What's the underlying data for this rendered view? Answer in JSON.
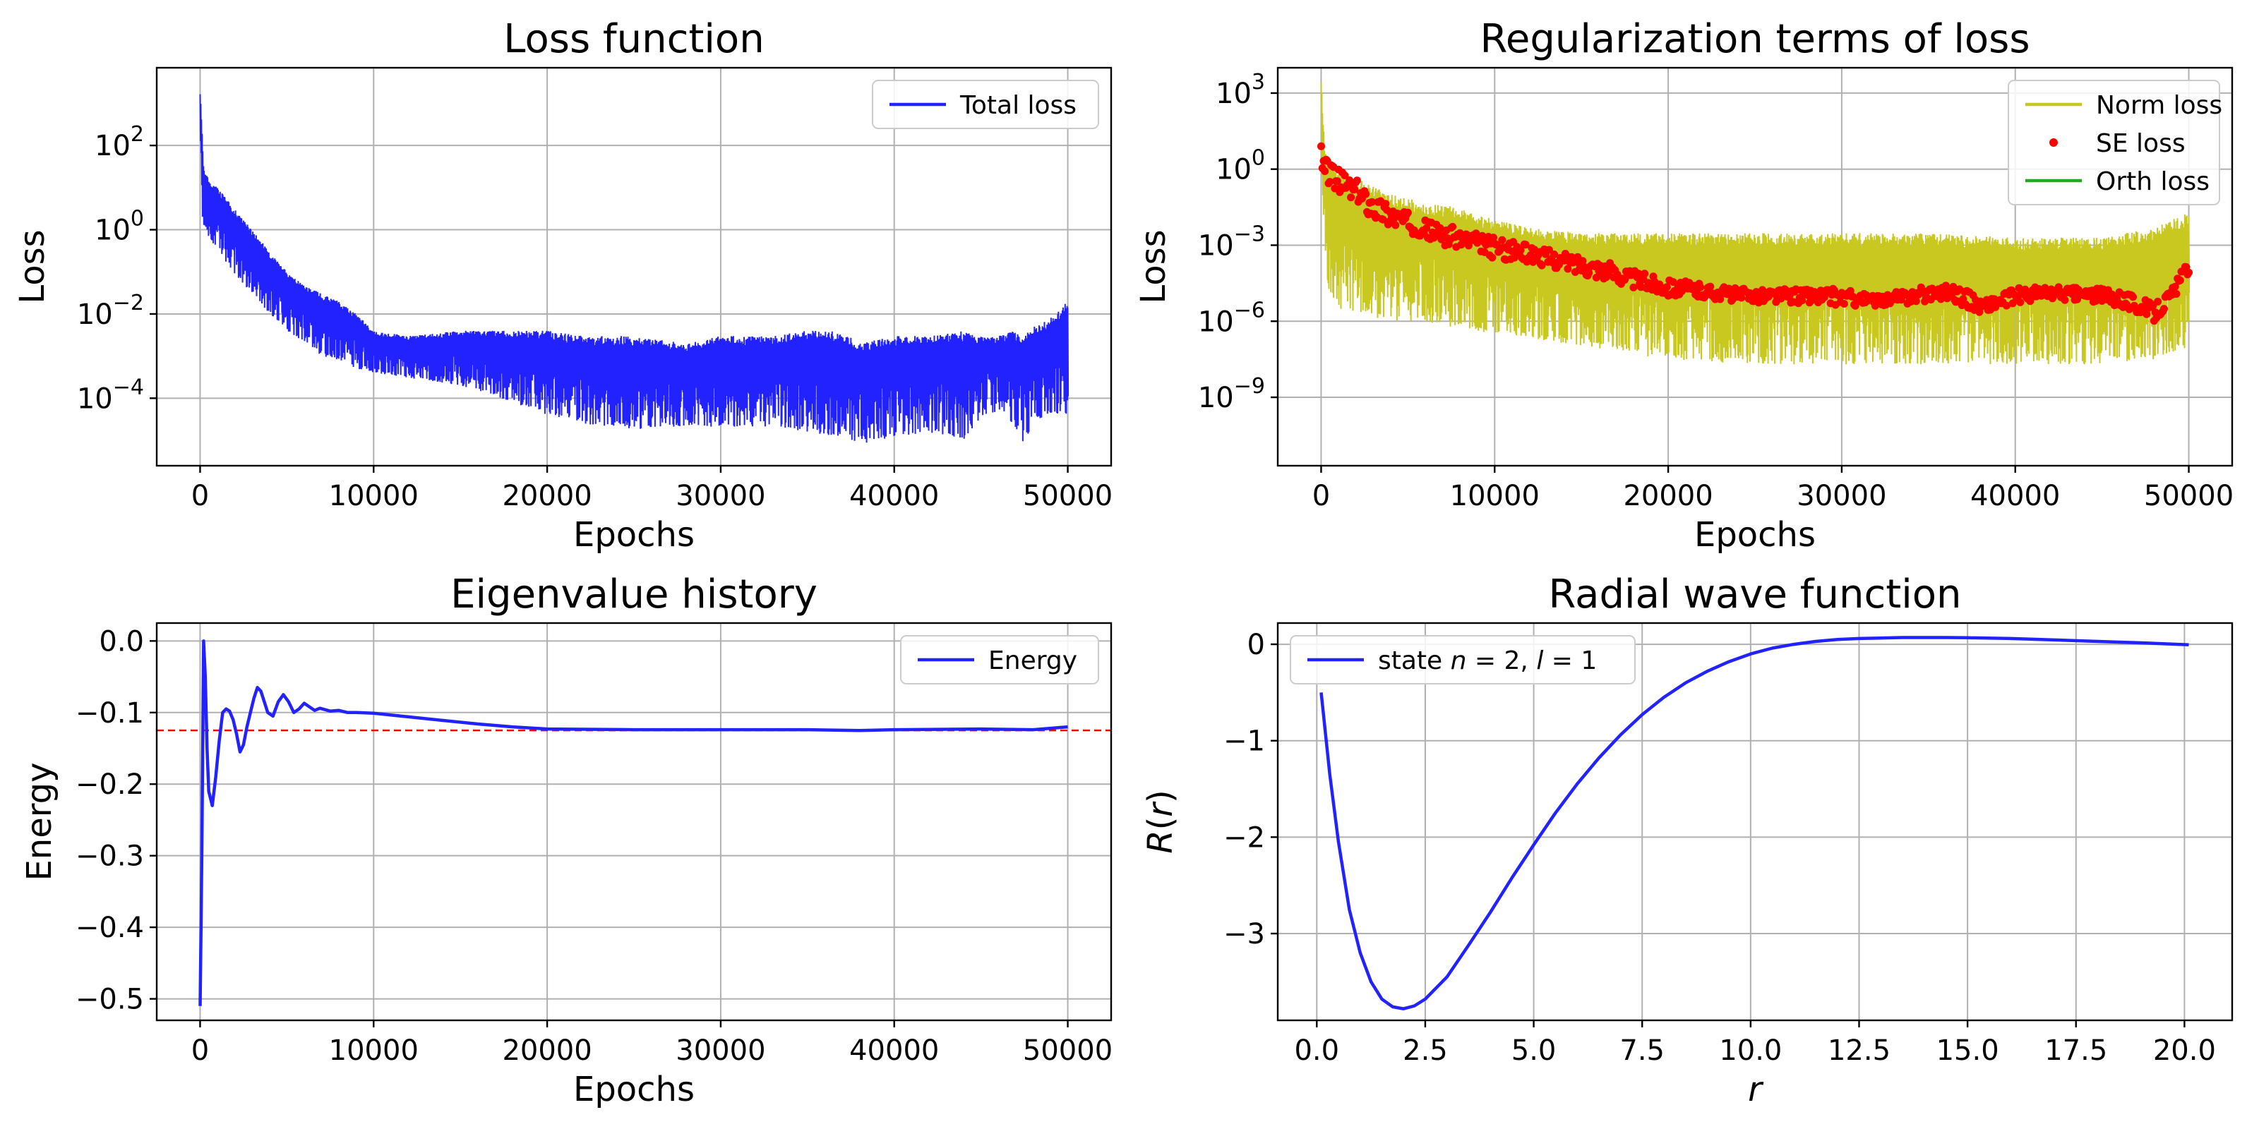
{
  "chart_data": [
    {
      "type": "line",
      "title": "Loss function",
      "xlabel": "Epochs",
      "ylabel": "Loss",
      "yscale": "log",
      "xlim": [
        -2500,
        52500
      ],
      "ylim": [
        2.5e-06,
        7000
      ],
      "xticks": [
        0,
        10000,
        20000,
        30000,
        40000,
        50000
      ],
      "yticks": [
        {
          "exp": "2",
          "v": 100
        },
        {
          "exp": "0",
          "v": 1
        },
        {
          "exp": "-2",
          "v": 0.01
        },
        {
          "exp": "-4",
          "v": 0.0001
        }
      ],
      "grid": true,
      "legend": "top-right",
      "series": [
        {
          "name": "Total loss",
          "color": "#2222ff",
          "style": "noisy-band",
          "x": [
            0,
            200,
            500,
            1000,
            2000,
            3000,
            4000,
            5000,
            6000,
            7000,
            8000,
            9000,
            10000,
            12000,
            15000,
            18000,
            20000,
            22000,
            25000,
            28000,
            30000,
            33000,
            35000,
            37000,
            38000,
            40000,
            42000,
            44000,
            45000,
            46000,
            47000,
            47500,
            48000,
            49000,
            50000
          ],
          "upper": [
            3000,
            30,
            15,
            10,
            3,
            1,
            0.3,
            0.1,
            0.05,
            0.03,
            0.02,
            0.01,
            0.004,
            0.003,
            0.004,
            0.004,
            0.004,
            0.003,
            0.003,
            0.002,
            0.003,
            0.003,
            0.004,
            0.004,
            0.002,
            0.003,
            0.003,
            0.004,
            0.003,
            0.003,
            0.004,
            0.003,
            0.005,
            0.008,
            0.02
          ],
          "lower": [
            5,
            1,
            0.6,
            0.3,
            0.08,
            0.03,
            0.01,
            0.004,
            0.002,
            0.001,
            0.0008,
            0.0005,
            0.0004,
            0.0003,
            0.0002,
            8e-05,
            4e-05,
            2.5e-05,
            1.8e-05,
            2.2e-05,
            2e-05,
            2e-05,
            1.5e-05,
            1.2e-05,
            8e-06,
            1.2e-05,
            1.5e-05,
            1e-05,
            3e-05,
            5e-05,
            2e-05,
            6e-06,
            3e-05,
            4e-05,
            4e-05
          ]
        }
      ]
    },
    {
      "type": "line",
      "title": "Regularization terms of loss",
      "xlabel": "Epochs",
      "ylabel": "Loss",
      "yscale": "log",
      "xlim": [
        -2500,
        52500
      ],
      "ylim": [
        2e-12,
        10000
      ],
      "xticks": [
        0,
        10000,
        20000,
        30000,
        40000,
        50000
      ],
      "yticks": [
        {
          "exp": "3",
          "v": 1000
        },
        {
          "exp": "0",
          "v": 1
        },
        {
          "exp": "-3",
          "v": 0.001
        },
        {
          "exp": "-6",
          "v": 1e-06
        },
        {
          "exp": "-9",
          "v": 1e-09
        }
      ],
      "grid": true,
      "legend": "top-right",
      "series": [
        {
          "name": "Norm loss",
          "color": "#c8c820",
          "style": "noisy-band",
          "x": [
            0,
            200,
            500,
            1000,
            2000,
            4000,
            6000,
            8000,
            10000,
            12000,
            15000,
            20000,
            25000,
            30000,
            35000,
            40000,
            45000,
            48000,
            50000
          ],
          "upper": [
            3000,
            10,
            3,
            1,
            0.5,
            0.1,
            0.05,
            0.03,
            0.01,
            0.005,
            0.003,
            0.003,
            0.003,
            0.003,
            0.003,
            0.002,
            0.002,
            0.005,
            0.02
          ],
          "lower": [
            1,
            0.0001,
            1e-05,
            3e-06,
            2e-06,
            1e-06,
            1e-06,
            5e-07,
            3e-07,
            2e-07,
            1e-07,
            3e-08,
            2e-08,
            2e-08,
            2e-08,
            2e-08,
            2e-08,
            3e-08,
            1e-07
          ]
        },
        {
          "name": "SE loss",
          "color": "#ff0000",
          "style": "dots",
          "x": [
            0,
            300,
            1000,
            2000,
            3000,
            4000,
            5000,
            6000,
            7000,
            8000,
            9000,
            10000,
            12000,
            14000,
            16000,
            18000,
            20000,
            22000,
            24000,
            26000,
            28000,
            30000,
            32000,
            34000,
            36000,
            37000,
            38000,
            39000,
            40000,
            42000,
            44000,
            45000,
            46000,
            47000,
            48000,
            49000,
            50000
          ],
          "upper": [
            20,
            3,
            1,
            0.4,
            0.1,
            0.05,
            0.02,
            0.01,
            0.006,
            0.005,
            0.003,
            0.002,
            0.001,
            0.0005,
            0.0003,
            0.0001,
            5e-05,
            3e-05,
            2e-05,
            2e-05,
            2e-05,
            2e-05,
            1e-05,
            2e-05,
            3e-05,
            2e-05,
            8e-06,
            1e-05,
            2e-05,
            2.5e-05,
            2e-05,
            2e-05,
            2e-05,
            1e-05,
            5e-06,
            2e-05,
            0.0003
          ],
          "lower": [
            0.01,
            0.3,
            0.1,
            0.04,
            0.01,
            0.005,
            0.003,
            0.002,
            0.001,
            0.0007,
            0.0005,
            0.0003,
            0.0002,
            0.0001,
            5e-05,
            2e-05,
            1e-05,
            8e-06,
            6e-06,
            5e-06,
            5e-06,
            4e-06,
            4e-06,
            5e-06,
            8e-06,
            4e-06,
            2e-06,
            3e-06,
            5e-06,
            7e-06,
            6e-06,
            5e-06,
            4e-06,
            2e-06,
            1e-06,
            5e-06,
            8e-05
          ]
        },
        {
          "name": "Orth loss",
          "color": "#22aa22",
          "style": "line",
          "x": [],
          "y": []
        }
      ]
    },
    {
      "type": "line",
      "title": "Eigenvalue history",
      "xlabel": "Epochs",
      "ylabel": "Energy",
      "xlim": [
        -2500,
        52500
      ],
      "ylim": [
        -0.53,
        0.025
      ],
      "xticks": [
        0,
        10000,
        20000,
        30000,
        40000,
        50000
      ],
      "yticks": [
        {
          "label": "0.0",
          "v": 0
        },
        {
          "label": "−0.1",
          "v": -0.1
        },
        {
          "label": "−0.2",
          "v": -0.2
        },
        {
          "label": "−0.3",
          "v": -0.3
        },
        {
          "label": "−0.4",
          "v": -0.4
        },
        {
          "label": "−0.5",
          "v": -0.5
        }
      ],
      "grid": true,
      "legend": "top-right",
      "reference_line": {
        "y": -0.125,
        "color": "#ff0000",
        "style": "dashed"
      },
      "series": [
        {
          "name": "Energy",
          "color": "#2222ff",
          "style": "line",
          "x": [
            0,
            100,
            200,
            300,
            400,
            500,
            700,
            900,
            1100,
            1300,
            1500,
            1700,
            1900,
            2100,
            2300,
            2500,
            2700,
            2900,
            3100,
            3300,
            3500,
            3700,
            3900,
            4200,
            4500,
            4800,
            5100,
            5400,
            5700,
            6000,
            6300,
            6600,
            6900,
            7200,
            7500,
            8000,
            8500,
            9000,
            10000,
            12000,
            14000,
            16000,
            18000,
            20000,
            25000,
            30000,
            35000,
            38000,
            40000,
            45000,
            48000,
            50000
          ],
          "y": [
            -0.51,
            -0.3,
            0,
            -0.05,
            -0.15,
            -0.21,
            -0.23,
            -0.19,
            -0.14,
            -0.1,
            -0.095,
            -0.098,
            -0.11,
            -0.13,
            -0.155,
            -0.145,
            -0.12,
            -0.1,
            -0.08,
            -0.065,
            -0.07,
            -0.085,
            -0.1,
            -0.105,
            -0.085,
            -0.075,
            -0.085,
            -0.1,
            -0.095,
            -0.087,
            -0.092,
            -0.097,
            -0.094,
            -0.096,
            -0.098,
            -0.097,
            -0.1,
            -0.1,
            -0.101,
            -0.106,
            -0.111,
            -0.116,
            -0.12,
            -0.123,
            -0.124,
            -0.124,
            -0.124,
            -0.125,
            -0.124,
            -0.123,
            -0.124,
            -0.12
          ]
        }
      ]
    },
    {
      "type": "line",
      "title": "Radial wave function",
      "xlabel": "r",
      "ylabel": "R(r)",
      "xlim": [
        -0.9,
        21.1
      ],
      "ylim": [
        -3.9,
        0.22
      ],
      "xticks": [
        {
          "label": "0.0",
          "v": 0
        },
        {
          "label": "2.5",
          "v": 2.5
        },
        {
          "label": "5.0",
          "v": 5
        },
        {
          "label": "7.5",
          "v": 7.5
        },
        {
          "label": "10.0",
          "v": 10
        },
        {
          "label": "12.5",
          "v": 12.5
        },
        {
          "label": "15.0",
          "v": 15
        },
        {
          "label": "17.5",
          "v": 17.5
        },
        {
          "label": "20.0",
          "v": 20
        }
      ],
      "yticks": [
        {
          "label": "0",
          "v": 0
        },
        {
          "label": "−1",
          "v": -1
        },
        {
          "label": "−2",
          "v": -2
        },
        {
          "label": "−3",
          "v": -3
        }
      ],
      "grid": true,
      "legend": "top-left",
      "series": [
        {
          "name": "state n = 2, l = 1",
          "color": "#2222ff",
          "style": "line",
          "x": [
            0.1,
            0.3,
            0.5,
            0.75,
            1,
            1.25,
            1.5,
            1.75,
            2,
            2.25,
            2.5,
            3,
            3.5,
            4,
            4.5,
            5,
            5.5,
            6,
            6.5,
            7,
            7.5,
            8,
            8.5,
            9,
            9.5,
            10,
            10.5,
            11,
            11.5,
            12,
            12.5,
            13,
            13.5,
            14,
            14.5,
            15,
            16,
            17,
            18,
            19,
            20.1
          ],
          "y": [
            -0.5,
            -1.35,
            -2.05,
            -2.75,
            -3.2,
            -3.5,
            -3.68,
            -3.76,
            -3.78,
            -3.75,
            -3.68,
            -3.45,
            -3.12,
            -2.78,
            -2.42,
            -2.08,
            -1.75,
            -1.45,
            -1.18,
            -0.94,
            -0.73,
            -0.55,
            -0.4,
            -0.28,
            -0.18,
            -0.1,
            -0.04,
            0,
            0.03,
            0.05,
            0.06,
            0.065,
            0.07,
            0.07,
            0.07,
            0.068,
            0.06,
            0.045,
            0.03,
            0.015,
            -0.005
          ]
        }
      ]
    }
  ]
}
